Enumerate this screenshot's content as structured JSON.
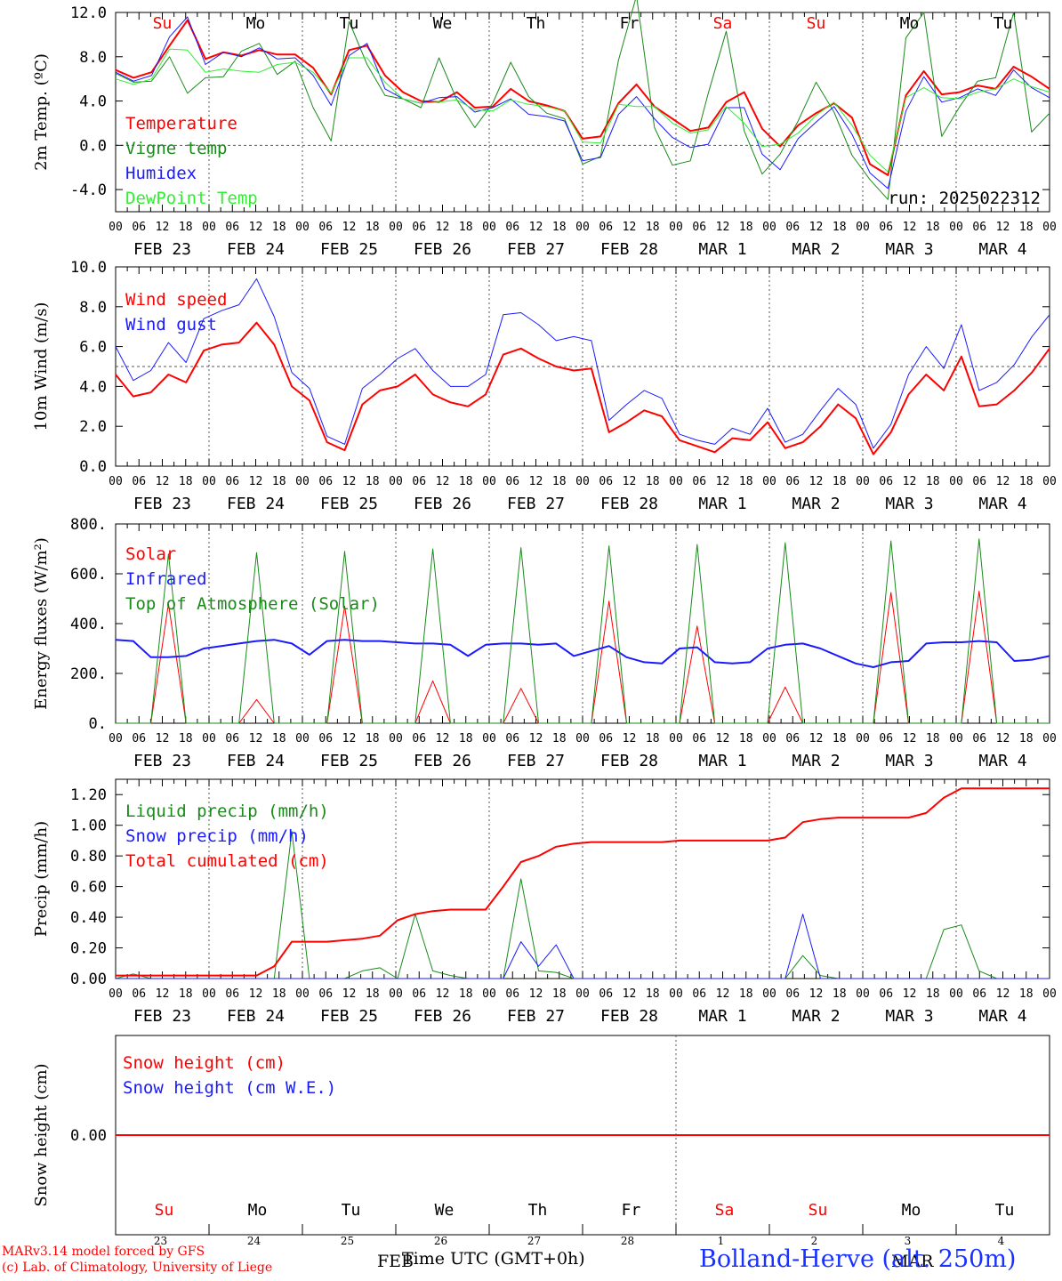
{
  "colors": {
    "red": "#ff0000",
    "green": "#1a8a1a",
    "blue": "#1a1aff",
    "lightgreen": "#33ee33",
    "black": "#000000",
    "weekend": "#ff0000"
  },
  "timeline": {
    "day_names": [
      "Su",
      "Mo",
      "Tu",
      "We",
      "Th",
      "Fr",
      "Sa",
      "Su",
      "Mo",
      "Tu"
    ],
    "day_colors": [
      "red",
      "black",
      "black",
      "black",
      "black",
      "black",
      "red",
      "red",
      "black",
      "black"
    ],
    "date_labels": [
      "FEB 23",
      "FEB 24",
      "FEB 25",
      "FEB 26",
      "FEB 27",
      "FEB 28",
      "MAR 1",
      "MAR 2",
      "MAR 3",
      "MAR 4"
    ],
    "hour_ticks": [
      "00",
      "06",
      "12",
      "18"
    ],
    "final_tick": "00",
    "day_numbers": [
      "23",
      "24",
      "25",
      "26",
      "27",
      "28",
      "1",
      "2",
      "3",
      "4"
    ],
    "bottom_months": [
      "FEB",
      "MAR"
    ]
  },
  "footer": {
    "model_line": "MARv3.14 model forced by GFS",
    "credit_line": "(c) Lab. of Climatology, University of Liege",
    "xlabel": "Time UTC (GMT+0h)",
    "station": "Bolland-Herve (alt. 250m)"
  },
  "chart_data": [
    {
      "type": "line",
      "ylabel": "2m Temp. (ºC)",
      "ylim": [
        -6,
        12
      ],
      "y_ticks": [
        "12.0",
        "8.0",
        "4.0",
        "0.0",
        "-4.0"
      ],
      "y_tick_values": [
        12,
        8,
        4,
        0,
        -4
      ],
      "ref_line": 0,
      "annotation": "run: 2025022312",
      "x_hours_step": 6,
      "series": [
        {
          "name": "Temperature",
          "color": "red",
          "width": 2,
          "values": [
            6.8,
            6.1,
            6.6,
            9.0,
            11.3,
            7.8,
            8.4,
            8.1,
            8.6,
            8.2,
            8.2,
            7.0,
            4.6,
            8.6,
            9.0,
            6.3,
            4.8,
            4.0,
            3.9,
            4.8,
            3.4,
            3.5,
            5.1,
            4.0,
            3.6,
            3.1,
            0.6,
            0.8,
            3.8,
            5.5,
            3.5,
            2.4,
            1.3,
            1.6,
            3.9,
            4.8,
            1.5,
            -0.1,
            1.8,
            2.9,
            3.8,
            2.5,
            -1.7,
            -2.7,
            4.5,
            6.7,
            4.6,
            4.8,
            5.4,
            5.1,
            7.1,
            6.2,
            5.1
          ]
        },
        {
          "name": "Vigne temp",
          "color": "green",
          "width": 1,
          "values": [
            6.5,
            5.7,
            5.8,
            8.0,
            4.7,
            6.1,
            6.2,
            8.5,
            9.2,
            6.4,
            7.6,
            3.4,
            0.4,
            11.2,
            7.3,
            4.5,
            4.2,
            3.4,
            7.9,
            4.1,
            1.6,
            3.8,
            7.5,
            4.4,
            2.9,
            2.4,
            -1.7,
            -1.0,
            7.7,
            13.5,
            1.6,
            -1.8,
            -1.4,
            4.7,
            10.3,
            1.3,
            -2.6,
            -0.8,
            2.2,
            5.7,
            3.0,
            -0.9,
            -3.1,
            -4.9,
            9.7,
            12.0,
            0.8,
            3.5,
            5.8,
            6.1,
            12.0,
            1.2,
            2.9
          ]
        },
        {
          "name": "Humidex",
          "color": "blue",
          "width": 1,
          "values": [
            6.6,
            5.8,
            6.3,
            9.8,
            11.6,
            7.3,
            8.4,
            8.0,
            8.8,
            7.8,
            7.9,
            6.3,
            3.6,
            8.1,
            9.2,
            5.1,
            4.2,
            3.8,
            4.3,
            4.4,
            3.0,
            3.4,
            4.2,
            2.8,
            2.6,
            2.2,
            -1.4,
            -1.1,
            2.8,
            4.4,
            2.4,
            0.7,
            -0.2,
            0.1,
            3.4,
            3.4,
            -0.8,
            -2.2,
            0.6,
            2.1,
            3.5,
            1.0,
            -2.5,
            -3.9,
            3.1,
            6.2,
            3.9,
            4.3,
            5.1,
            4.5,
            6.8,
            5.2,
            4.3
          ]
        },
        {
          "name": "DewPoint Temp",
          "color": "lightgreen",
          "width": 1,
          "values": [
            6.0,
            5.5,
            6.0,
            8.7,
            8.6,
            6.6,
            6.9,
            6.7,
            6.6,
            7.3,
            7.5,
            6.6,
            4.7,
            7.9,
            7.9,
            5.7,
            4.2,
            3.8,
            3.9,
            4.1,
            3.2,
            3.1,
            4.1,
            3.7,
            3.5,
            3.1,
            0.3,
            0.2,
            3.7,
            3.5,
            3.5,
            2.0,
            1.1,
            1.4,
            3.5,
            2.0,
            -0.1,
            0.1,
            1.1,
            2.7,
            3.9,
            1.8,
            -0.9,
            -2.4,
            4.3,
            5.2,
            4.3,
            4.2,
            4.8,
            5.1,
            6.0,
            5.3,
            4.8
          ]
        }
      ]
    },
    {
      "type": "line",
      "ylabel": "10m Wind (m/s)",
      "ylim": [
        0,
        10
      ],
      "y_ticks": [
        "10.0",
        "8.0",
        "6.0",
        "4.0",
        "2.0",
        "0.0"
      ],
      "y_tick_values": [
        10,
        8,
        6,
        4,
        2,
        0
      ],
      "ref_line": 5,
      "x_hours_step": 6,
      "series": [
        {
          "name": "Wind speed",
          "color": "red",
          "width": 2,
          "values": [
            4.6,
            3.5,
            3.7,
            4.6,
            4.2,
            5.8,
            6.1,
            6.2,
            7.2,
            6.1,
            4.0,
            3.3,
            1.2,
            0.8,
            3.1,
            3.8,
            4.0,
            4.6,
            3.6,
            3.2,
            3.0,
            3.6,
            5.6,
            5.9,
            5.4,
            5.0,
            4.8,
            4.9,
            1.7,
            2.2,
            2.8,
            2.5,
            1.3,
            1.0,
            0.7,
            1.4,
            1.3,
            2.2,
            0.9,
            1.2,
            2.0,
            3.1,
            2.4,
            0.6,
            1.7,
            3.6,
            4.6,
            3.8,
            5.5,
            3.0,
            3.1,
            3.8,
            4.7,
            5.9
          ]
        },
        {
          "name": "Wind gust",
          "color": "blue",
          "width": 1,
          "values": [
            6.0,
            4.3,
            4.8,
            6.2,
            5.2,
            7.4,
            7.8,
            8.1,
            9.4,
            7.5,
            4.7,
            3.9,
            1.5,
            1.1,
            3.9,
            4.6,
            5.4,
            5.9,
            4.8,
            4.0,
            4.0,
            4.6,
            7.6,
            7.7,
            7.1,
            6.3,
            6.5,
            6.3,
            2.3,
            3.1,
            3.8,
            3.4,
            1.6,
            1.3,
            1.1,
            1.9,
            1.6,
            2.9,
            1.2,
            1.6,
            2.8,
            3.9,
            3.1,
            0.9,
            2.1,
            4.6,
            6.0,
            4.9,
            7.1,
            3.8,
            4.2,
            5.1,
            6.5,
            7.6
          ]
        }
      ]
    },
    {
      "type": "line",
      "ylabel": "Energy fluxes (W/m²)",
      "ylim": [
        0,
        800
      ],
      "y_ticks": [
        "800.",
        "600.",
        "400.",
        "200.",
        "0."
      ],
      "y_tick_values": [
        800,
        600,
        400,
        200,
        0
      ],
      "x_hours_step": 6,
      "series": [
        {
          "name": "Solar",
          "color": "red",
          "width": 1,
          "values": [
            0,
            0,
            0,
            480,
            0,
            0,
            0,
            0,
            95,
            0,
            0,
            0,
            0,
            470,
            0,
            0,
            0,
            0,
            170,
            0,
            0,
            0,
            0,
            140,
            0,
            0,
            0,
            0,
            490,
            0,
            0,
            0,
            0,
            390,
            0,
            0,
            0,
            0,
            145,
            0,
            0,
            0,
            0,
            0,
            525,
            0,
            0,
            0,
            0,
            530,
            0,
            0,
            0,
            0
          ]
        },
        {
          "name": "Infrared",
          "color": "blue",
          "width": 2,
          "values": [
            335,
            330,
            265,
            265,
            270,
            300,
            310,
            320,
            330,
            335,
            320,
            275,
            330,
            335,
            330,
            330,
            325,
            320,
            320,
            315,
            270,
            315,
            320,
            320,
            315,
            320,
            270,
            290,
            310,
            265,
            245,
            240,
            300,
            305,
            245,
            240,
            245,
            300,
            315,
            320,
            300,
            270,
            240,
            225,
            245,
            250,
            320,
            325,
            325,
            330,
            325,
            250,
            255,
            270
          ]
        },
        {
          "name": "Top of Atmosphere (Solar)",
          "color": "green",
          "width": 1,
          "values": [
            0,
            0,
            0,
            680,
            0,
            0,
            0,
            0,
            685,
            0,
            0,
            0,
            0,
            690,
            0,
            0,
            0,
            0,
            700,
            0,
            0,
            0,
            0,
            705,
            0,
            0,
            0,
            0,
            712,
            0,
            0,
            0,
            0,
            718,
            0,
            0,
            0,
            0,
            725,
            0,
            0,
            0,
            0,
            0,
            732,
            0,
            0,
            0,
            0,
            740,
            0,
            0,
            0,
            0
          ]
        }
      ]
    },
    {
      "type": "line",
      "ylabel": "Precip (mm/h)",
      "ylim": [
        0,
        1.3
      ],
      "y_ticks": [
        "1.20",
        "1.00",
        "0.80",
        "0.60",
        "0.40",
        "0.20",
        "0.00"
      ],
      "y_tick_values": [
        1.2,
        1.0,
        0.8,
        0.6,
        0.4,
        0.2,
        0.0
      ],
      "x_hours_step": 6,
      "series": [
        {
          "name": "Liquid precip (mm/h)",
          "color": "green",
          "width": 1,
          "values": [
            0.0,
            0.03,
            0.0,
            0.0,
            0.0,
            0.0,
            0.0,
            0.0,
            0.0,
            0.0,
            0.96,
            0.0,
            0.0,
            0.0,
            0.05,
            0.07,
            0.0,
            0.42,
            0.05,
            0.02,
            0.0,
            0.0,
            0.0,
            0.65,
            0.05,
            0.04,
            0.0,
            0.0,
            0.0,
            0.0,
            0.0,
            0.0,
            0.0,
            0.0,
            0.0,
            0.0,
            0.0,
            0.0,
            0.0,
            0.15,
            0.02,
            0.0,
            0.0,
            0.0,
            0.0,
            0.0,
            0.0,
            0.32,
            0.35,
            0.05,
            0.0,
            0.0,
            0.0,
            0.0
          ]
        },
        {
          "name": "Snow precip (mm/h)",
          "color": "blue",
          "width": 1,
          "values": [
            0.0,
            0.0,
            0.0,
            0.0,
            0.0,
            0.0,
            0.0,
            0.0,
            0.0,
            0.0,
            0.0,
            0.0,
            0.0,
            0.0,
            0.0,
            0.0,
            0.0,
            0.0,
            0.0,
            0.0,
            0.0,
            0.0,
            0.0,
            0.24,
            0.08,
            0.22,
            0.0,
            0.0,
            0.0,
            0.0,
            0.0,
            0.0,
            0.0,
            0.0,
            0.0,
            0.0,
            0.0,
            0.0,
            0.0,
            0.42,
            0.0,
            0.0,
            0.0,
            0.0,
            0.0,
            0.0,
            0.0,
            0.0,
            0.0,
            0.0,
            0.0,
            0.0,
            0.0,
            0.0
          ]
        },
        {
          "name": "Total cumulated (cm)",
          "color": "red",
          "width": 2,
          "values": [
            0.02,
            0.02,
            0.02,
            0.02,
            0.02,
            0.02,
            0.02,
            0.02,
            0.02,
            0.08,
            0.24,
            0.24,
            0.24,
            0.25,
            0.26,
            0.28,
            0.38,
            0.42,
            0.44,
            0.45,
            0.45,
            0.45,
            0.6,
            0.76,
            0.8,
            0.86,
            0.88,
            0.89,
            0.89,
            0.89,
            0.89,
            0.89,
            0.9,
            0.9,
            0.9,
            0.9,
            0.9,
            0.9,
            0.92,
            1.02,
            1.04,
            1.05,
            1.05,
            1.05,
            1.05,
            1.05,
            1.08,
            1.18,
            1.24,
            1.24,
            1.24,
            1.24,
            1.24,
            1.24
          ]
        }
      ]
    },
    {
      "type": "line",
      "ylabel": "Snow height (cm)",
      "ylim": [
        -1,
        1
      ],
      "y_ticks": [
        "0.00"
      ],
      "y_tick_values": [
        0
      ],
      "x_hours_step": 6,
      "series": [
        {
          "name": "Snow height (cm)",
          "color": "red",
          "width": 2,
          "values": [
            0,
            0
          ]
        },
        {
          "name": "Snow height (cm W.E.)",
          "color": "blue",
          "width": 1,
          "values": []
        }
      ]
    }
  ]
}
